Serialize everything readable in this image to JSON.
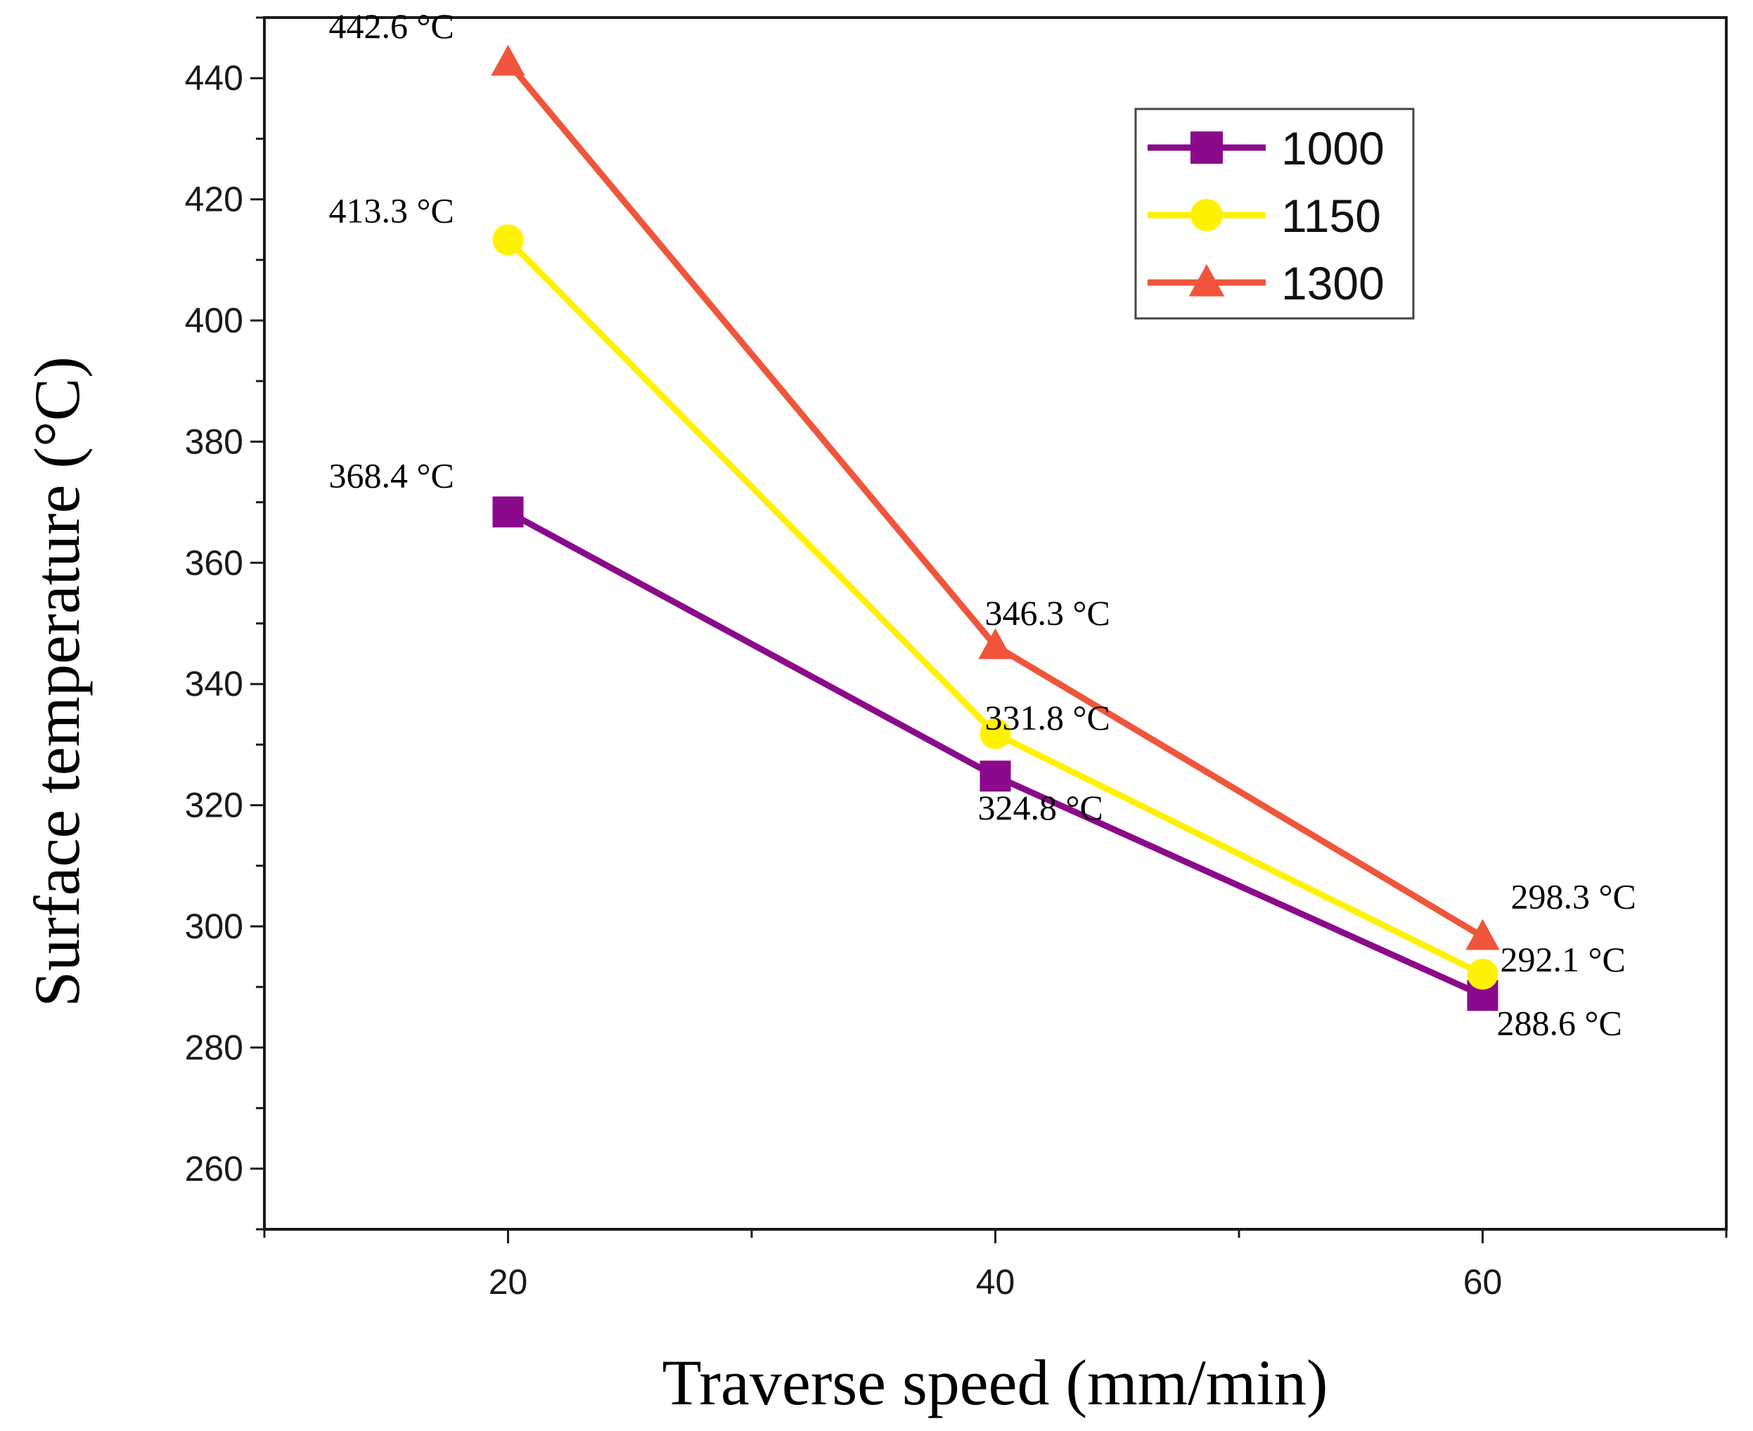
{
  "chart_data": {
    "type": "line",
    "title": "",
    "xlabel": "Traverse speed (mm/min)",
    "ylabel": "Surface temperature (°C)",
    "x": [
      20,
      40,
      60
    ],
    "xlim": [
      10,
      70
    ],
    "ylim": [
      250,
      450
    ],
    "xticks": [
      20,
      40,
      60
    ],
    "xtick_labels": [
      "20",
      "40",
      "60"
    ],
    "yticks": [
      260,
      280,
      300,
      320,
      340,
      360,
      380,
      400,
      420,
      440
    ],
    "ytick_labels": [
      "260",
      "280",
      "300",
      "320",
      "340",
      "360",
      "380",
      "400",
      "420",
      "440"
    ],
    "grid": false,
    "legend_position": "top-right",
    "series": [
      {
        "name": "1000",
        "color": "#8B0A8B",
        "marker": "square",
        "values": [
          368.4,
          324.8,
          288.6
        ],
        "labels": [
          "368.4 °C",
          "324.8 °C",
          "288.6 °C"
        ]
      },
      {
        "name": "1150",
        "color": "#FFF200",
        "marker": "circle",
        "values": [
          413.3,
          331.8,
          292.1
        ],
        "labels": [
          "413.3 °C",
          "331.8 °C",
          "292.1 °C"
        ]
      },
      {
        "name": "1300",
        "color": "#F0553B",
        "marker": "triangle",
        "values": [
          442.6,
          346.3,
          298.3
        ],
        "labels": [
          "442.6 °C",
          "346.3 °C",
          "298.3 °C"
        ]
      }
    ]
  }
}
